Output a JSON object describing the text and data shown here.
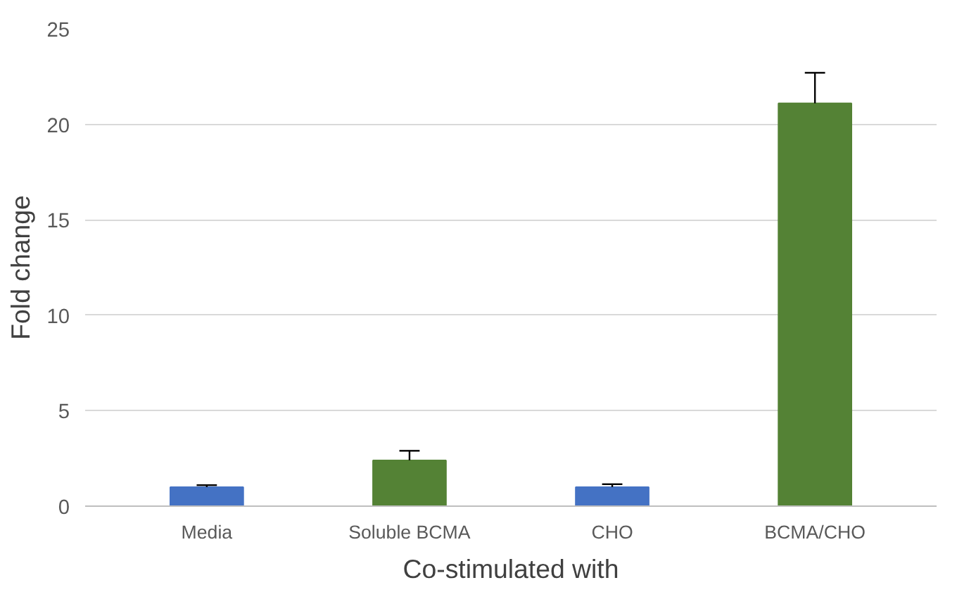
{
  "chart_data": {
    "type": "bar",
    "xlabel": "Co-stimulated with",
    "ylabel": "Fold change",
    "categories": [
      "Media",
      "Soluble BCMA",
      "CHO",
      "BCMA/CHO"
    ],
    "values": [
      1.0,
      2.4,
      1.0,
      21.1
    ],
    "colors": [
      "#4472c4",
      "#548235",
      "#4472c4",
      "#548235"
    ],
    "errors": [
      [
        1.0,
        1.1
      ],
      [
        2.4,
        2.9
      ],
      [
        1.0,
        1.15
      ],
      [
        21.1,
        22.7
      ]
    ],
    "ylim": [
      0,
      25
    ],
    "yticks": [
      0,
      5,
      10,
      15,
      20,
      25
    ],
    "grid": "y"
  }
}
